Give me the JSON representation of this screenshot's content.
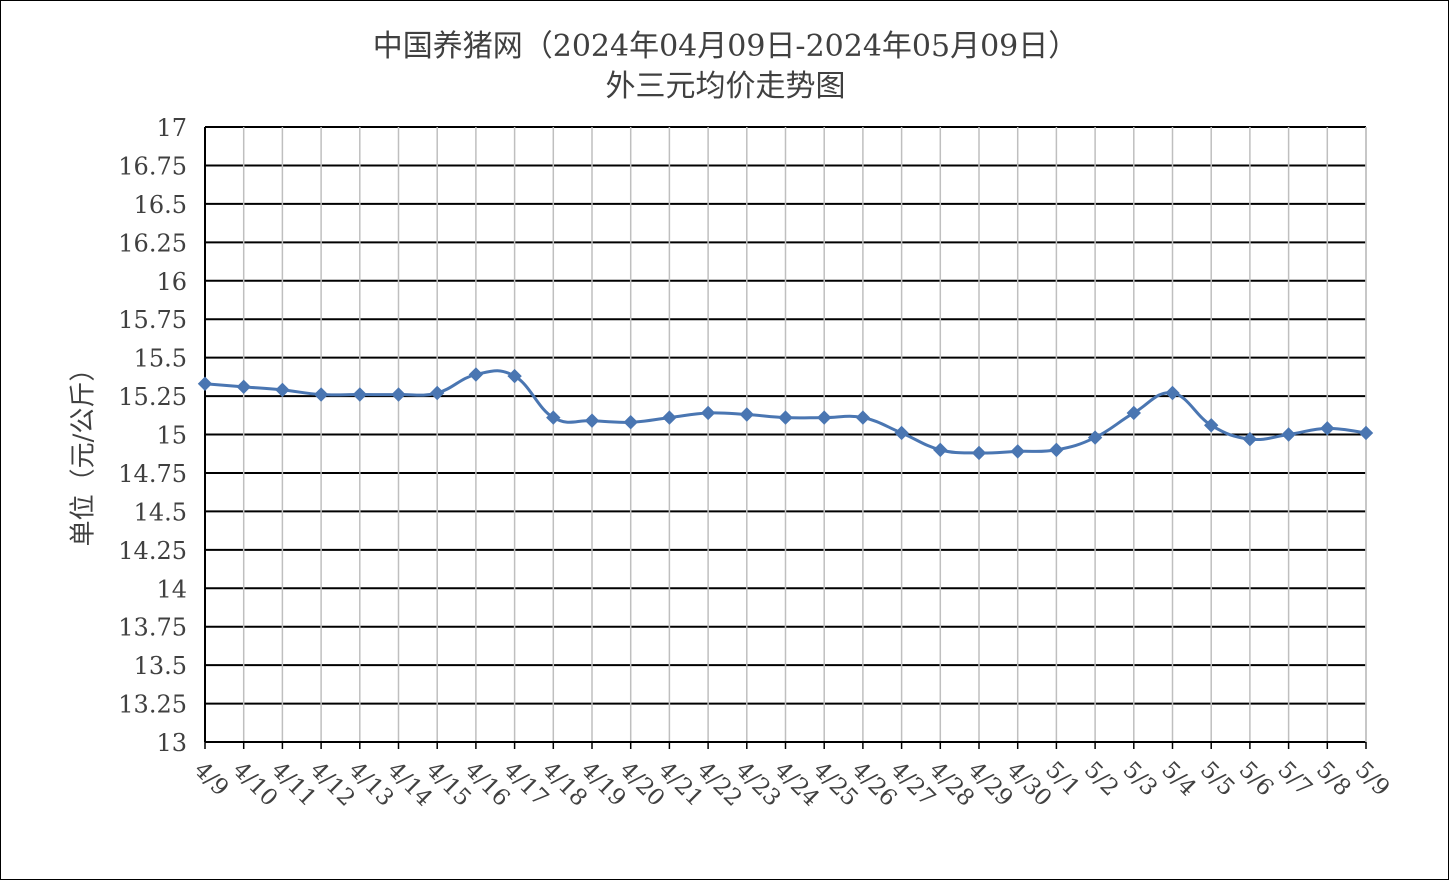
{
  "chart_data": {
    "type": "line",
    "title": "中国养猪网（2024年04月09日-2024年05月09日）",
    "subtitle": "外三元均价走势图",
    "xlabel": "",
    "ylabel": "单位（元/公斤）",
    "ylim": [
      13,
      17
    ],
    "yticks": [
      "13",
      "13.25",
      "13.5",
      "13.75",
      "14",
      "14.25",
      "14.5",
      "14.75",
      "15",
      "15.25",
      "15.5",
      "15.75",
      "16",
      "16.25",
      "16.5",
      "16.75",
      "17"
    ],
    "grid": true,
    "categories": [
      "4/9",
      "4/10",
      "4/11",
      "4/12",
      "4/13",
      "4/14",
      "4/15",
      "4/16",
      "4/17",
      "4/18",
      "4/19",
      "4/20",
      "4/21",
      "4/22",
      "4/23",
      "4/24",
      "4/25",
      "4/26",
      "4/27",
      "4/28",
      "4/29",
      "4/30",
      "5/1",
      "5/2",
      "5/3",
      "5/4",
      "5/5",
      "5/6",
      "5/7",
      "5/8",
      "5/9"
    ],
    "series": [
      {
        "color": "#4A76B2",
        "values": [
          15.33,
          15.31,
          15.29,
          15.26,
          15.26,
          15.26,
          15.27,
          15.39,
          15.38,
          15.11,
          15.09,
          15.08,
          15.11,
          15.14,
          15.13,
          15.11,
          15.11,
          15.11,
          15.01,
          14.9,
          14.88,
          14.89,
          14.9,
          14.98,
          15.14,
          15.27,
          15.06,
          14.97,
          15.0,
          15.04,
          15.01
        ]
      }
    ]
  }
}
